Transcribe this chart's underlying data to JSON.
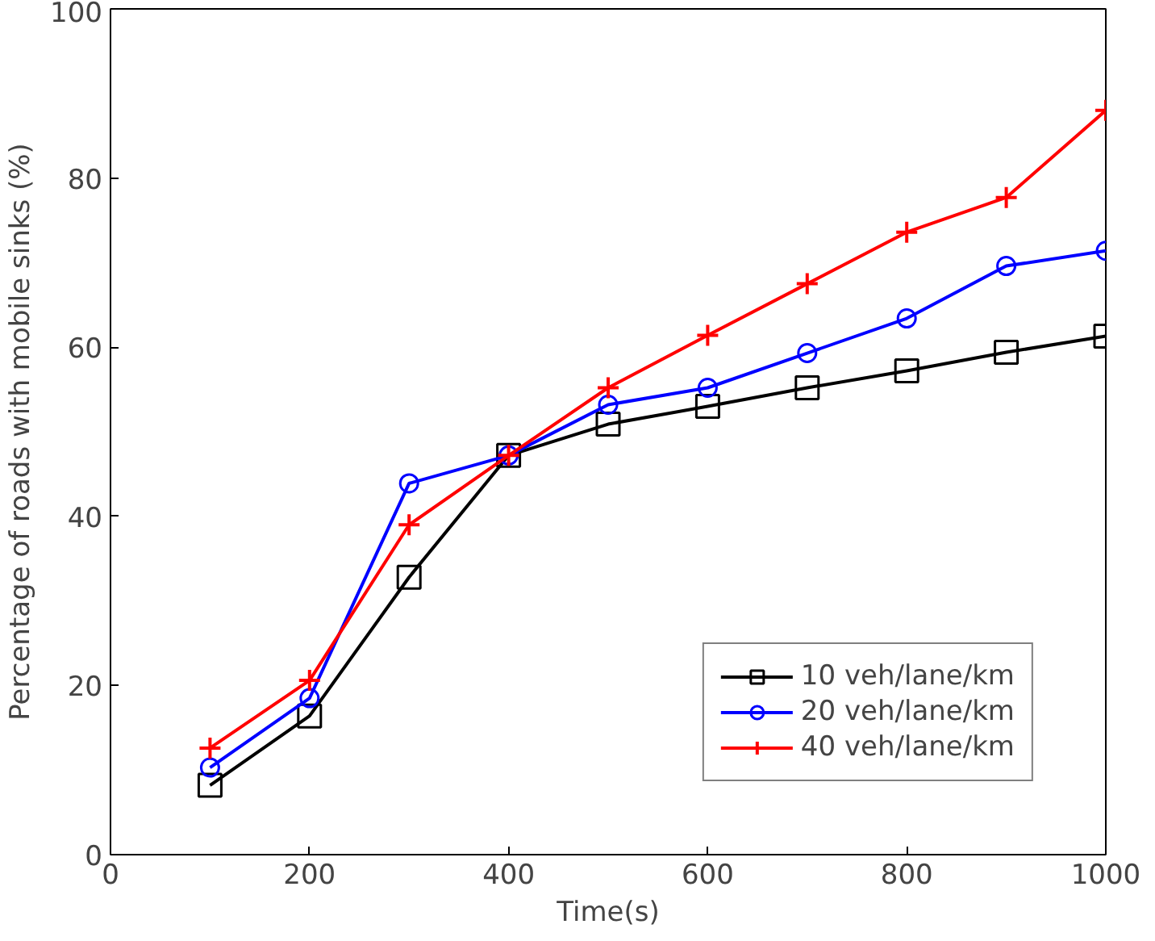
{
  "chart_data": {
    "type": "line",
    "xlabel": "Time(s)",
    "ylabel": "Percentage of roads with mobile sinks (%)",
    "x": [
      100,
      200,
      300,
      400,
      500,
      600,
      700,
      800,
      900,
      1000
    ],
    "series": [
      {
        "name": "10 veh/lane/km",
        "color": "#000000",
        "marker": "square",
        "values": [
          8.2,
          16.4,
          32.8,
          47.2,
          50.9,
          53.0,
          55.2,
          57.2,
          59.4,
          61.3
        ]
      },
      {
        "name": "20 veh/lane/km",
        "color": "#0000ff",
        "marker": "circle",
        "values": [
          10.3,
          18.5,
          43.9,
          47.2,
          53.2,
          55.2,
          59.3,
          63.4,
          69.6,
          71.4
        ]
      },
      {
        "name": "40 veh/lane/km",
        "color": "#ff0000",
        "marker": "cross",
        "values": [
          12.6,
          20.6,
          39.0,
          47.2,
          55.2,
          61.4,
          67.5,
          73.6,
          77.7,
          88.0
        ]
      }
    ],
    "xlim": [
      0,
      1000
    ],
    "ylim": [
      0,
      100
    ],
    "xticks": [
      0,
      200,
      400,
      600,
      800,
      1000
    ],
    "yticks": [
      0,
      20,
      40,
      60,
      80,
      100
    ],
    "grid": false,
    "legend": "bottom right",
    "line_style": "solid"
  }
}
